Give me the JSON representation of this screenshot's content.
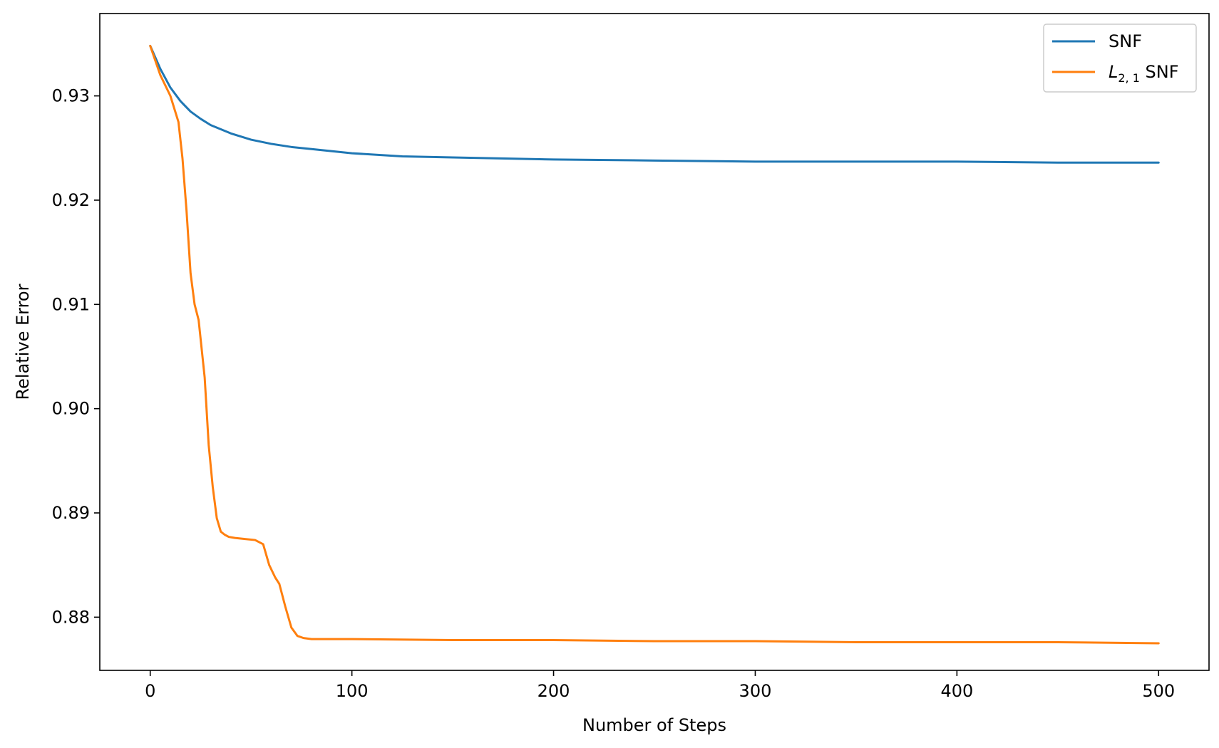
{
  "chart_data": {
    "type": "line",
    "xlabel": "Number of Steps",
    "ylabel": "Relative Error",
    "xlim": [
      -25,
      525
    ],
    "ylim": [
      0.8749,
      0.9379
    ],
    "xticks": [
      0,
      100,
      200,
      300,
      400,
      500
    ],
    "xtick_labels": [
      "0",
      "100",
      "200",
      "300",
      "400",
      "500"
    ],
    "yticks": [
      0.88,
      0.89,
      0.9,
      0.91,
      0.92,
      0.93
    ],
    "ytick_labels": [
      "0.88",
      "0.89",
      "0.90",
      "0.91",
      "0.92",
      "0.93"
    ],
    "grid": false,
    "legend_position": "top-right",
    "series": [
      {
        "name": "SNF",
        "color": "#1f77b4",
        "x": [
          0,
          5,
          10,
          15,
          20,
          25,
          30,
          40,
          50,
          60,
          70,
          80,
          100,
          125,
          150,
          200,
          250,
          300,
          350,
          400,
          450,
          500
        ],
        "y": [
          0.9348,
          0.9326,
          0.9308,
          0.9295,
          0.9285,
          0.9278,
          0.9272,
          0.9264,
          0.9258,
          0.9254,
          0.9251,
          0.9249,
          0.9245,
          0.9242,
          0.9241,
          0.9239,
          0.9238,
          0.9237,
          0.9237,
          0.9237,
          0.9236,
          0.9236
        ]
      },
      {
        "name": "L2,1 SNF",
        "legend_main": "L",
        "legend_sub": "2, 1",
        "legend_rest": " SNF",
        "color": "#ff7f0e",
        "x": [
          0,
          5,
          10,
          14,
          16,
          18,
          20,
          22,
          24,
          27,
          29,
          31,
          33,
          35,
          37,
          39,
          42,
          47,
          52,
          56,
          59,
          62,
          64,
          67,
          70,
          73,
          76,
          80,
          100,
          150,
          200,
          250,
          300,
          350,
          400,
          450,
          500
        ],
        "y": [
          0.9348,
          0.932,
          0.93,
          0.9275,
          0.924,
          0.919,
          0.913,
          0.91,
          0.9085,
          0.903,
          0.8965,
          0.8925,
          0.8895,
          0.8882,
          0.8879,
          0.8877,
          0.8876,
          0.8875,
          0.8874,
          0.887,
          0.885,
          0.8838,
          0.8832,
          0.881,
          0.879,
          0.8782,
          0.878,
          0.8779,
          0.8779,
          0.8778,
          0.8778,
          0.8777,
          0.8777,
          0.8776,
          0.8776,
          0.8776,
          0.8775
        ]
      }
    ]
  }
}
